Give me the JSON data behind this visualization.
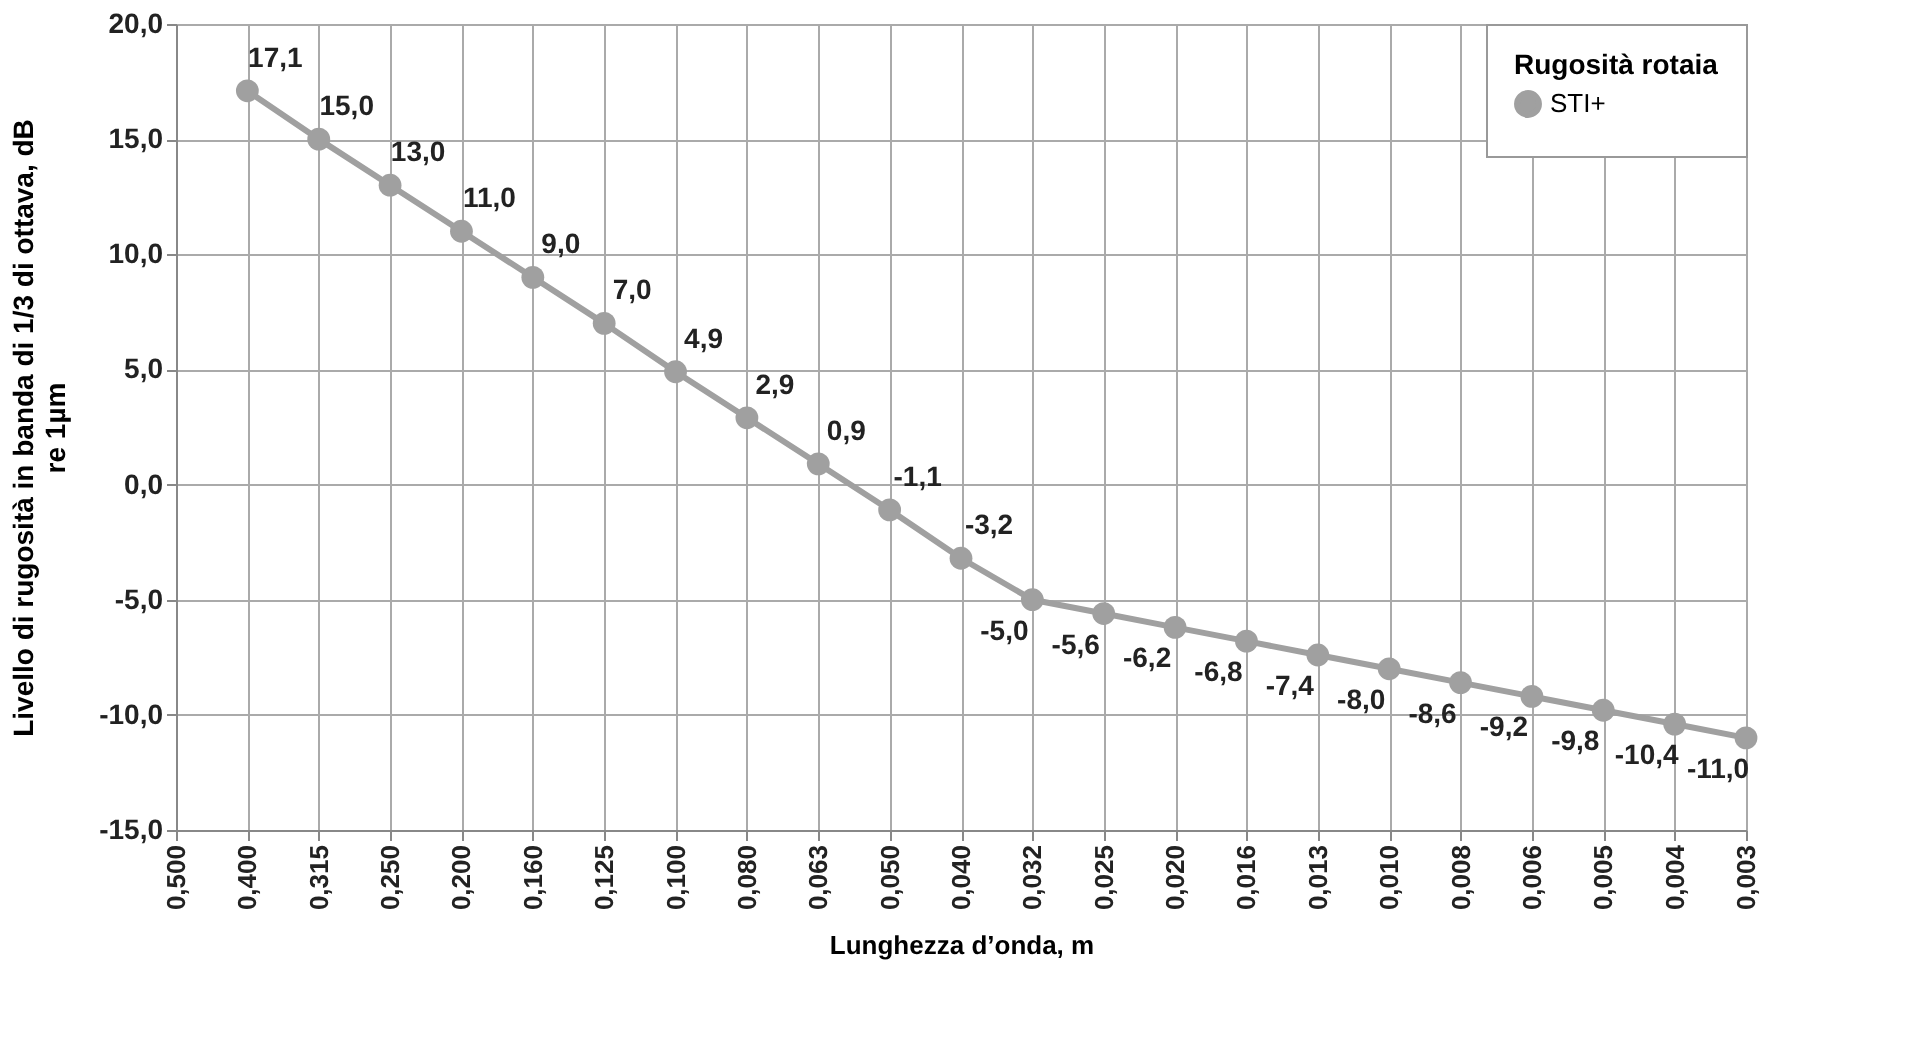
{
  "chart_data": {
    "type": "line",
    "xlabel": "Lunghezza d’onda, m",
    "ylabel": "Livello di rugosità in banda di 1/3 di ottava, dB\nre 1µm",
    "legend_title": "Rugosità rotaia",
    "categories": [
      "0,500",
      "0,400",
      "0,315",
      "0,250",
      "0,200",
      "0,160",
      "0,125",
      "0,100",
      "0,080",
      "0,063",
      "0,050",
      "0,040",
      "0,032",
      "0,025",
      "0,020",
      "0,016",
      "0,013",
      "0,010",
      "0,008",
      "0,006",
      "0,005",
      "0,004",
      "0,003"
    ],
    "series": [
      {
        "name": "STI+",
        "color": "#a0a0a0",
        "values": [
          null,
          17.1,
          15.0,
          13.0,
          11.0,
          9.0,
          7.0,
          4.9,
          2.9,
          0.9,
          -1.1,
          -3.2,
          -5.0,
          -5.6,
          -6.2,
          -6.8,
          -7.4,
          -8.0,
          -8.6,
          -9.2,
          -9.8,
          -10.4,
          -11.0
        ],
        "value_labels": [
          null,
          "17,1",
          "15,0",
          "13,0",
          "11,0",
          "9,0",
          "7,0",
          "4,9",
          "2,9",
          "0,9",
          "-1,1",
          "-3,2",
          "-5,0",
          "-5,6",
          "-6,2",
          "-6,8",
          "-7,4",
          "-8,0",
          "-8,6",
          "-9,2",
          "-9,8",
          "-10,4",
          "-11,0"
        ]
      }
    ],
    "ylim": [
      -15,
      20
    ],
    "yticks": [
      {
        "value": -15,
        "label": "-15,0"
      },
      {
        "value": -10,
        "label": "-10,0"
      },
      {
        "value": -5,
        "label": "-5,0"
      },
      {
        "value": 0,
        "label": "0,0"
      },
      {
        "value": 5,
        "label": "5,0"
      },
      {
        "value": 10,
        "label": "10,0"
      },
      {
        "value": 15,
        "label": "15,0"
      },
      {
        "value": 20,
        "label": "20,0"
      }
    ],
    "grid": true,
    "legend": "top right",
    "marker": "circle",
    "line_style": "solid"
  }
}
